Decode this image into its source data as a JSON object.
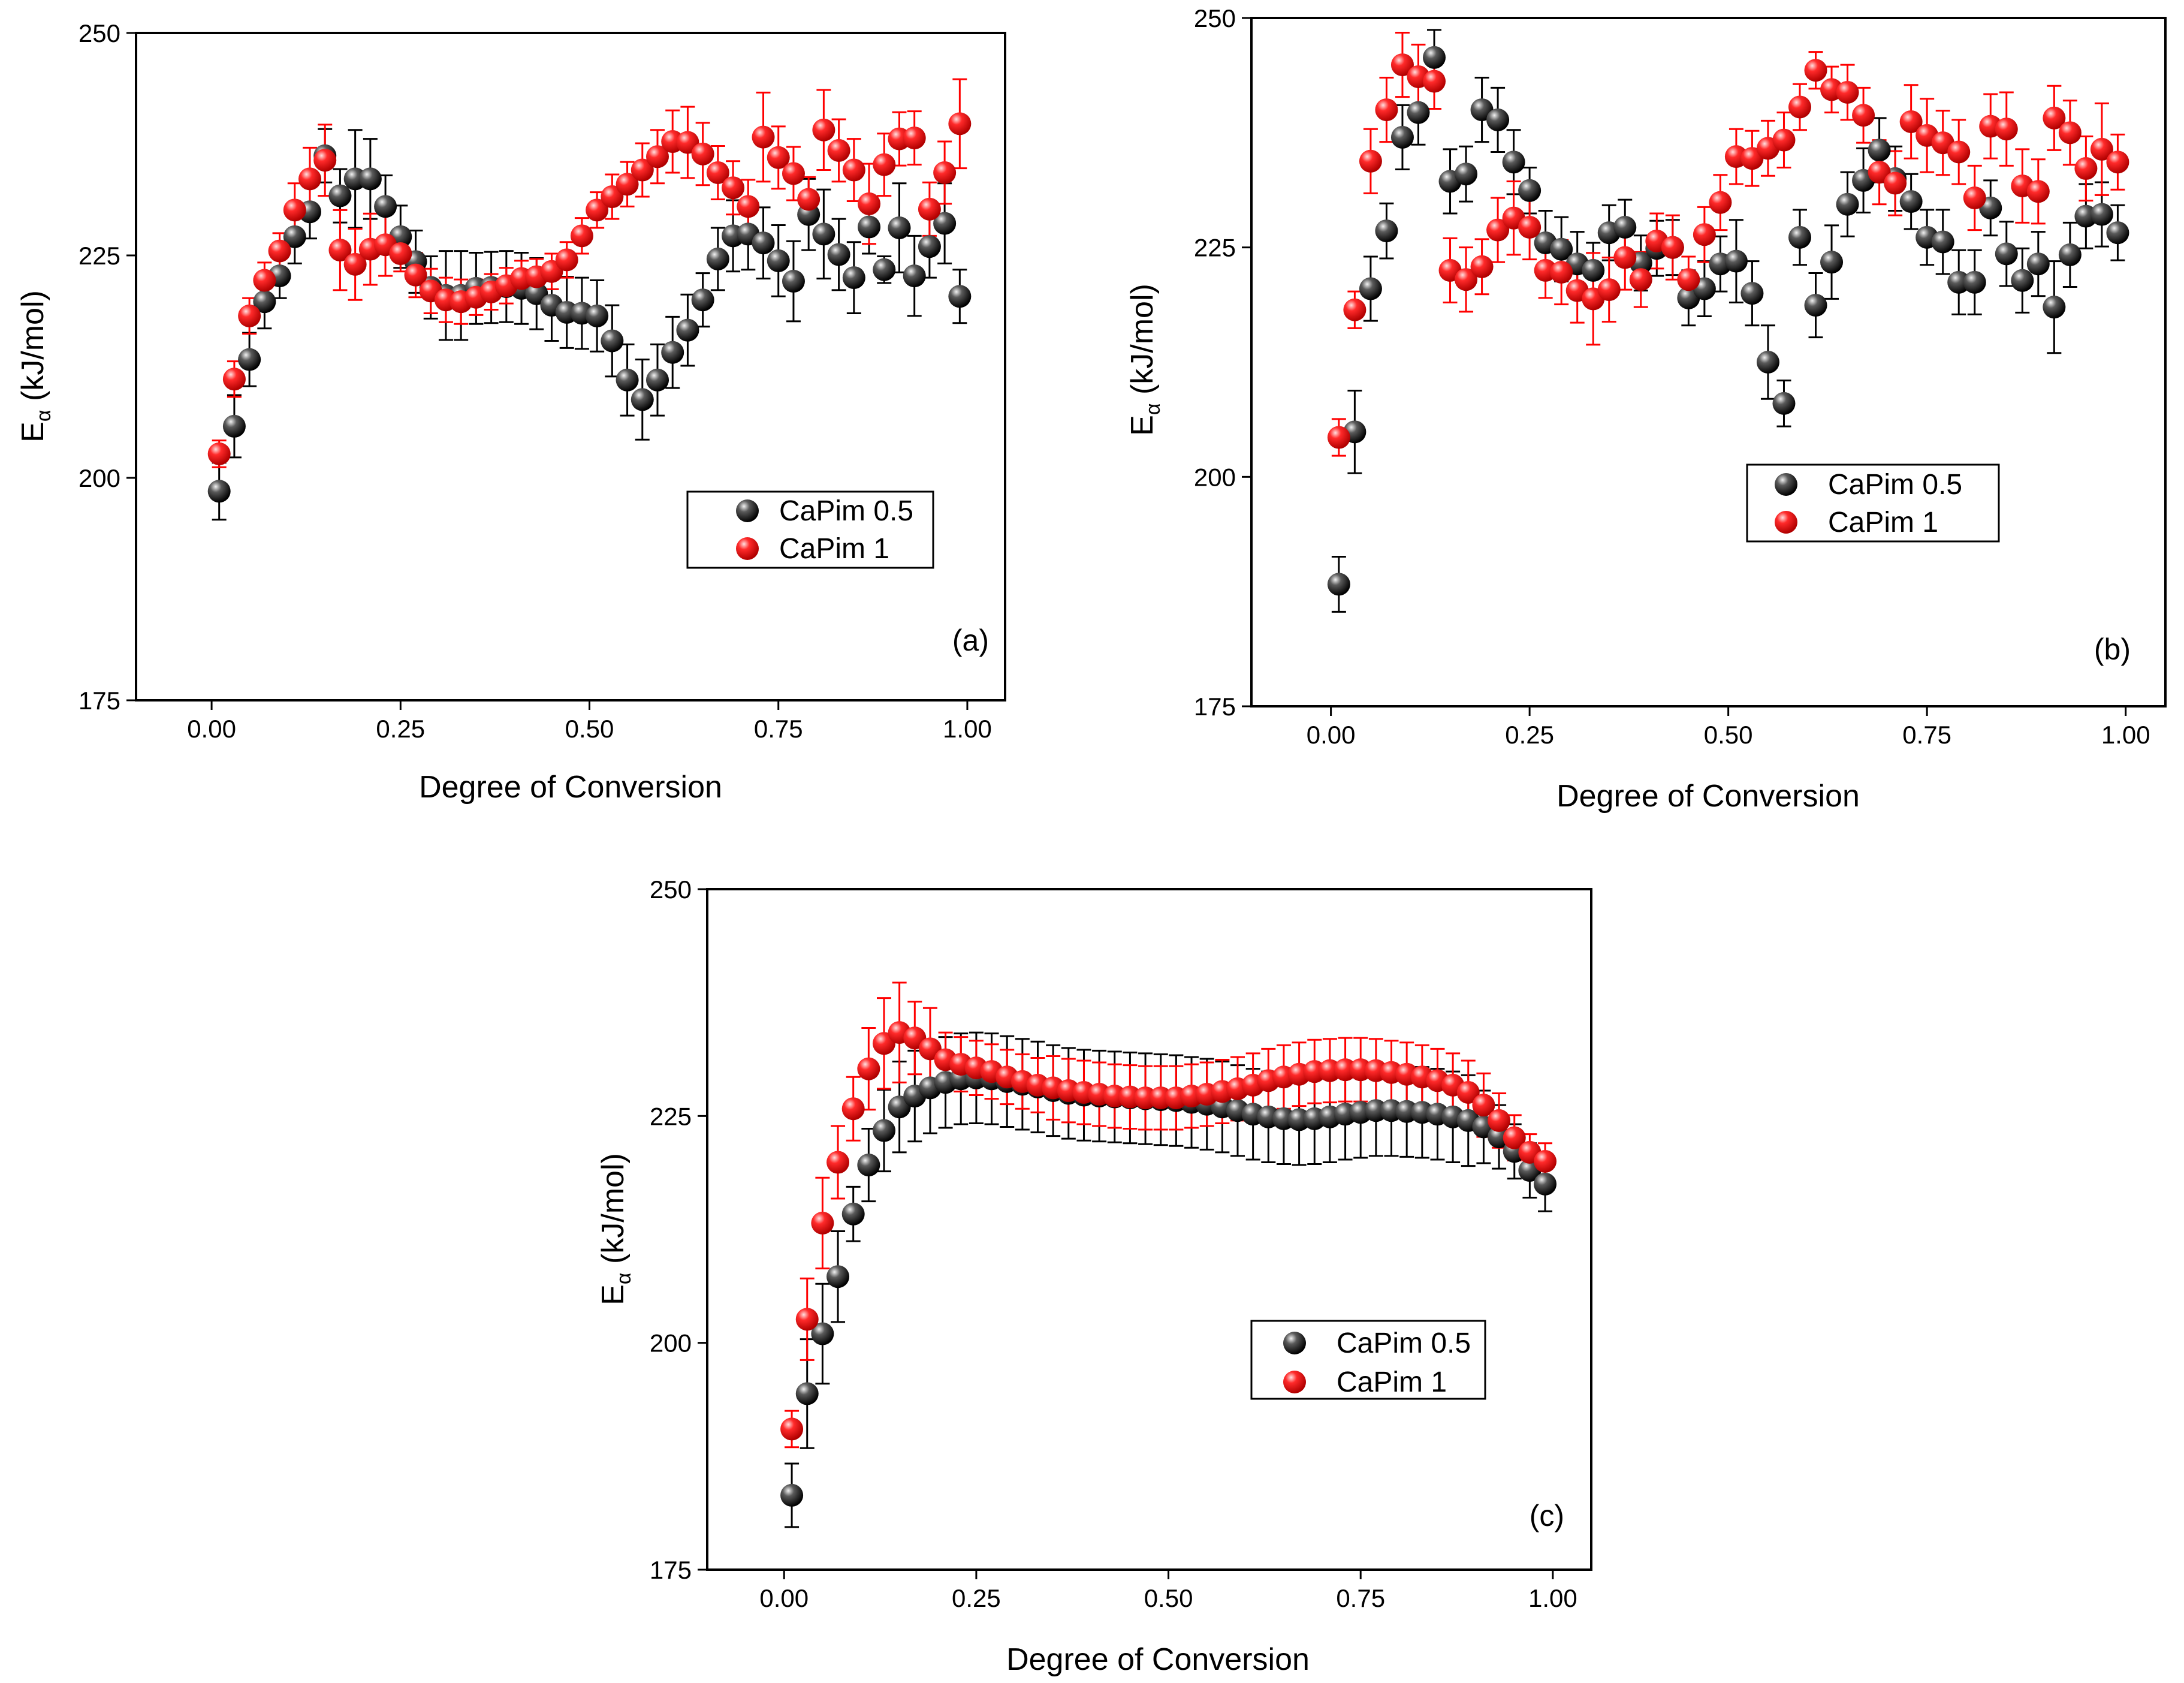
{
  "figure": {
    "colors": {
      "series_0": "#000000",
      "series_1": "#ff0000",
      "errorbar_0": "#000000",
      "errorbar_1": "#ff0000",
      "axis": "#000000"
    }
  },
  "chart_data": [
    {
      "type": "scatter",
      "panel_label": "(a)",
      "xlabel": "Degree of Conversion",
      "ylabel_main": "E",
      "ylabel_sub": "α",
      "ylabel_rest": " (kJ/mol)",
      "xlim": [
        -0.1,
        1.05
      ],
      "ylim": [
        175,
        250
      ],
      "xticks": [
        0.0,
        0.25,
        0.5,
        0.75,
        1.0
      ],
      "xtick_labels": [
        "0.00",
        "0.25",
        "0.50",
        "0.75",
        "1.00"
      ],
      "yticks": [
        175,
        200,
        225,
        250
      ],
      "ytick_labels": [
        "175",
        "200",
        "225",
        "250"
      ],
      "legend": [
        "CaPim 0.5",
        "CaPim 1"
      ],
      "legend_position": "middle-right",
      "panel_label_position": "bottom-right",
      "x": [
        0.01,
        0.03,
        0.05,
        0.07,
        0.09,
        0.11,
        0.13,
        0.15,
        0.17,
        0.19,
        0.21,
        0.23,
        0.25,
        0.27,
        0.29,
        0.31,
        0.33,
        0.35,
        0.37,
        0.39,
        0.41,
        0.43,
        0.45,
        0.47,
        0.49,
        0.51,
        0.53,
        0.55,
        0.57,
        0.59,
        0.61,
        0.63,
        0.65,
        0.67,
        0.69,
        0.71,
        0.73,
        0.75,
        0.77,
        0.79,
        0.81,
        0.83,
        0.85,
        0.87,
        0.89,
        0.91,
        0.93,
        0.95,
        0.97,
        0.99
      ],
      "series": [
        {
          "name": "CaPim 0.5",
          "values": [
            198.5,
            205.8,
            213.3,
            219.8,
            222.7,
            227.1,
            229.9,
            236.2,
            231.7,
            233.6,
            233.6,
            230.5,
            227.1,
            224.3,
            221.4,
            220.5,
            220.5,
            221.3,
            221.4,
            221.5,
            221.3,
            220.7,
            219.4,
            218.6,
            218.5,
            218.2,
            215.4,
            211.0,
            208.8,
            211.0,
            214.1,
            216.6,
            220.0,
            224.6,
            227.2,
            227.4,
            226.4,
            224.4,
            222.1,
            229.6,
            227.4,
            225.1,
            222.5,
            228.2,
            223.4,
            228.1,
            222.7,
            226.0,
            228.6,
            220.4
          ],
          "errors": [
            3.2,
            3.5,
            3.0,
            3.0,
            2.5,
            3.0,
            3.0,
            3.0,
            3.0,
            5.5,
            4.5,
            3.5,
            3.5,
            3.5,
            3.5,
            5.0,
            5.0,
            4.0,
            4.0,
            4.0,
            4.0,
            4.0,
            4.0,
            4.0,
            4.0,
            4.0,
            4.0,
            4.0,
            4.5,
            4.0,
            4.0,
            4.0,
            3.0,
            3.5,
            4.0,
            4.0,
            4.0,
            4.0,
            4.5,
            4.0,
            5.0,
            4.0,
            4.0,
            3.0,
            1.5,
            5.0,
            4.5,
            3.5,
            4.5,
            3.0
          ]
        },
        {
          "name": "CaPim 1",
          "values": [
            202.7,
            211.1,
            218.2,
            222.2,
            225.5,
            230.1,
            233.6,
            235.7,
            225.6,
            224.0,
            225.7,
            226.2,
            225.2,
            222.8,
            221.0,
            220.0,
            219.8,
            220.3,
            220.9,
            221.6,
            222.4,
            222.6,
            223.2,
            224.5,
            227.2,
            230.1,
            231.6,
            233.0,
            234.6,
            236.1,
            237.8,
            237.7,
            236.4,
            234.3,
            232.6,
            230.5,
            238.3,
            236.0,
            234.2,
            231.3,
            239.1,
            236.8,
            234.6,
            230.8,
            235.2,
            238.1,
            238.2,
            230.2,
            234.3,
            239.8
          ],
          "errors": [
            1.5,
            2.0,
            2.0,
            2.0,
            2.0,
            3.0,
            3.5,
            4.0,
            4.5,
            4.0,
            4.0,
            3.5,
            2.0,
            2.5,
            2.5,
            2.5,
            2.5,
            2.0,
            2.0,
            2.0,
            2.0,
            2.0,
            2.0,
            2.0,
            2.0,
            2.0,
            2.5,
            2.5,
            3.0,
            3.0,
            3.5,
            4.0,
            3.5,
            3.0,
            3.0,
            3.0,
            5.0,
            3.5,
            3.0,
            2.5,
            4.5,
            3.5,
            3.5,
            4.5,
            3.5,
            3.0,
            3.0,
            3.0,
            3.5,
            5.0
          ]
        }
      ]
    },
    {
      "type": "scatter",
      "panel_label": "(b)",
      "xlabel": "Degree of Conversion",
      "ylabel_main": "E",
      "ylabel_sub": "α",
      "ylabel_rest": " (kJ/mol)",
      "xlim": [
        -0.1,
        1.05
      ],
      "ylim": [
        175,
        250
      ],
      "xticks": [
        0.0,
        0.25,
        0.5,
        0.75,
        1.0
      ],
      "xtick_labels": [
        "0.00",
        "0.25",
        "0.50",
        "0.75",
        "1.00"
      ],
      "yticks": [
        175,
        200,
        225,
        250
      ],
      "ytick_labels": [
        "175",
        "200",
        "225",
        "250"
      ],
      "legend": [
        "CaPim 0.5",
        "CaPim 1"
      ],
      "legend_position": "middle-right",
      "panel_label_position": "bottom-right",
      "x": [
        0.01,
        0.03,
        0.05,
        0.07,
        0.09,
        0.11,
        0.13,
        0.15,
        0.17,
        0.19,
        0.21,
        0.23,
        0.25,
        0.27,
        0.29,
        0.31,
        0.33,
        0.35,
        0.37,
        0.39,
        0.41,
        0.43,
        0.45,
        0.47,
        0.49,
        0.51,
        0.53,
        0.55,
        0.57,
        0.59,
        0.61,
        0.63,
        0.65,
        0.67,
        0.69,
        0.71,
        0.73,
        0.75,
        0.77,
        0.79,
        0.81,
        0.83,
        0.85,
        0.87,
        0.89,
        0.91,
        0.93,
        0.95,
        0.97,
        0.99
      ],
      "series": [
        {
          "name": "CaPim 0.5",
          "values": [
            188.3,
            204.9,
            220.5,
            226.8,
            237.0,
            239.7,
            245.7,
            232.2,
            233.0,
            240.0,
            238.9,
            234.3,
            231.2,
            225.5,
            224.8,
            223.2,
            222.5,
            226.6,
            227.2,
            223.3,
            224.9,
            225.0,
            219.5,
            220.5,
            223.2,
            223.5,
            220.0,
            212.5,
            208.0,
            226.1,
            218.7,
            223.4,
            229.7,
            232.3,
            235.6,
            232.5,
            230.0,
            226.1,
            225.6,
            221.2,
            221.2,
            229.3,
            224.3,
            221.4,
            223.2,
            218.5,
            224.2,
            228.4,
            228.6,
            226.6
          ],
          "errors": [
            3.0,
            4.5,
            3.5,
            3.0,
            3.5,
            3.5,
            3.0,
            3.5,
            3.0,
            3.5,
            3.5,
            3.5,
            2.5,
            3.5,
            3.5,
            3.5,
            3.0,
            3.0,
            3.0,
            3.0,
            3.0,
            3.0,
            3.0,
            3.0,
            3.0,
            4.5,
            3.5,
            4.0,
            2.5,
            3.0,
            3.5,
            4.0,
            3.5,
            3.5,
            3.5,
            3.5,
            3.0,
            3.0,
            3.5,
            3.5,
            3.5,
            3.0,
            3.5,
            3.5,
            3.5,
            5.0,
            3.5,
            3.5,
            3.5,
            3.0
          ]
        },
        {
          "name": "CaPim 1",
          "values": [
            204.3,
            218.2,
            234.4,
            240.0,
            244.9,
            243.6,
            243.1,
            222.5,
            221.5,
            222.9,
            226.9,
            228.2,
            227.2,
            222.5,
            222.3,
            220.3,
            219.4,
            220.4,
            223.9,
            221.5,
            225.7,
            225.0,
            221.5,
            226.4,
            229.9,
            234.9,
            234.7,
            235.8,
            236.7,
            240.3,
            244.3,
            242.2,
            241.9,
            239.4,
            233.2,
            232.0,
            238.7,
            237.2,
            236.4,
            235.4,
            230.4,
            238.2,
            237.9,
            231.7,
            231.1,
            239.1,
            237.5,
            233.6,
            235.7,
            234.3
          ],
          "errors": [
            2.0,
            2.0,
            3.5,
            3.5,
            3.5,
            3.5,
            3.0,
            3.5,
            3.5,
            3.0,
            3.5,
            4.0,
            3.5,
            3.0,
            3.5,
            3.5,
            5.0,
            3.5,
            3.5,
            3.0,
            3.0,
            3.5,
            2.5,
            3.0,
            3.0,
            3.0,
            3.0,
            3.0,
            3.0,
            2.5,
            2.0,
            2.5,
            3.0,
            3.0,
            3.5,
            3.5,
            4.0,
            4.0,
            3.5,
            3.5,
            3.5,
            3.5,
            4.0,
            4.0,
            3.5,
            3.5,
            3.5,
            3.5,
            5.0,
            3.0
          ]
        }
      ]
    },
    {
      "type": "scatter",
      "panel_label": "(c)",
      "xlabel": "Degree of Conversion",
      "ylabel_main": "E",
      "ylabel_sub": "α",
      "ylabel_rest": " (kJ/mol)",
      "xlim": [
        -0.1,
        1.05
      ],
      "ylim": [
        175,
        250
      ],
      "xticks": [
        0.0,
        0.25,
        0.5,
        0.75,
        1.0
      ],
      "xtick_labels": [
        "0.00",
        "0.25",
        "0.50",
        "0.75",
        "1.00"
      ],
      "yticks": [
        175,
        200,
        225,
        250
      ],
      "ytick_labels": [
        "175",
        "200",
        "225",
        "250"
      ],
      "legend": [
        "CaPim 0.5",
        "CaPim 1"
      ],
      "legend_position": "middle-right",
      "panel_label_position": "bottom-right",
      "x": [
        0.01,
        0.03,
        0.05,
        0.07,
        0.09,
        0.11,
        0.13,
        0.15,
        0.17,
        0.19,
        0.21,
        0.23,
        0.25,
        0.27,
        0.29,
        0.31,
        0.33,
        0.35,
        0.37,
        0.39,
        0.41,
        0.43,
        0.45,
        0.47,
        0.49,
        0.51,
        0.53,
        0.55,
        0.57,
        0.59,
        0.61,
        0.63,
        0.65,
        0.67,
        0.69,
        0.71,
        0.73,
        0.75,
        0.77,
        0.79,
        0.81,
        0.83,
        0.85,
        0.87,
        0.89,
        0.91,
        0.93,
        0.95,
        0.97,
        0.99
      ],
      "series": [
        {
          "name": "CaPim 0.5",
          "values": [
            183.2,
            194.4,
            201.0,
            207.3,
            214.2,
            219.6,
            223.4,
            226.0,
            227.2,
            228.1,
            228.7,
            229.1,
            229.2,
            229.1,
            228.8,
            228.5,
            228.2,
            227.8,
            227.5,
            227.3,
            227.2,
            227.1,
            227.0,
            226.9,
            226.8,
            226.7,
            226.5,
            226.3,
            226.0,
            225.6,
            225.2,
            224.9,
            224.7,
            224.6,
            224.7,
            224.9,
            225.2,
            225.4,
            225.6,
            225.6,
            225.5,
            225.4,
            225.2,
            224.9,
            224.5,
            223.8,
            222.7,
            221.1,
            219.0,
            217.5
          ],
          "errors": [
            3.5,
            6.0,
            5.5,
            5.0,
            3.0,
            4.0,
            4.5,
            5.0,
            5.0,
            5.0,
            5.0,
            5.0,
            5.0,
            5.0,
            5.0,
            5.0,
            5.0,
            5.0,
            5.0,
            5.0,
            5.0,
            5.0,
            5.0,
            5.0,
            5.0,
            5.0,
            5.0,
            5.0,
            5.0,
            5.0,
            5.0,
            5.0,
            5.0,
            5.0,
            5.0,
            5.0,
            5.0,
            5.0,
            5.0,
            5.0,
            5.0,
            5.0,
            5.0,
            5.0,
            5.0,
            4.0,
            3.5,
            3.0,
            3.0,
            3.0
          ]
        },
        {
          "name": "CaPim 1",
          "values": [
            190.5,
            202.6,
            213.2,
            219.9,
            225.8,
            230.2,
            233.0,
            234.2,
            233.6,
            232.4,
            231.2,
            230.7,
            230.3,
            229.9,
            229.3,
            228.8,
            228.4,
            228.1,
            227.8,
            227.6,
            227.4,
            227.2,
            227.1,
            227.0,
            227.0,
            227.0,
            227.2,
            227.4,
            227.7,
            228.0,
            228.4,
            228.9,
            229.3,
            229.6,
            229.9,
            230.0,
            230.1,
            230.1,
            230.0,
            229.8,
            229.6,
            229.3,
            228.9,
            228.4,
            227.6,
            226.2,
            224.5,
            222.6,
            221.0,
            220.0
          ],
          "errors": [
            2.0,
            4.5,
            5.0,
            4.0,
            3.5,
            4.5,
            5.0,
            5.5,
            4.0,
            4.5,
            3.0,
            3.0,
            3.0,
            3.0,
            3.0,
            3.0,
            3.0,
            3.5,
            3.5,
            3.5,
            3.5,
            3.5,
            3.5,
            3.5,
            3.5,
            3.5,
            3.5,
            3.5,
            3.5,
            3.5,
            3.5,
            3.5,
            3.5,
            3.5,
            3.5,
            3.5,
            3.5,
            3.5,
            3.5,
            3.5,
            3.5,
            3.5,
            3.5,
            3.5,
            3.5,
            3.5,
            3.0,
            2.5,
            2.0,
            2.0
          ]
        }
      ]
    }
  ]
}
